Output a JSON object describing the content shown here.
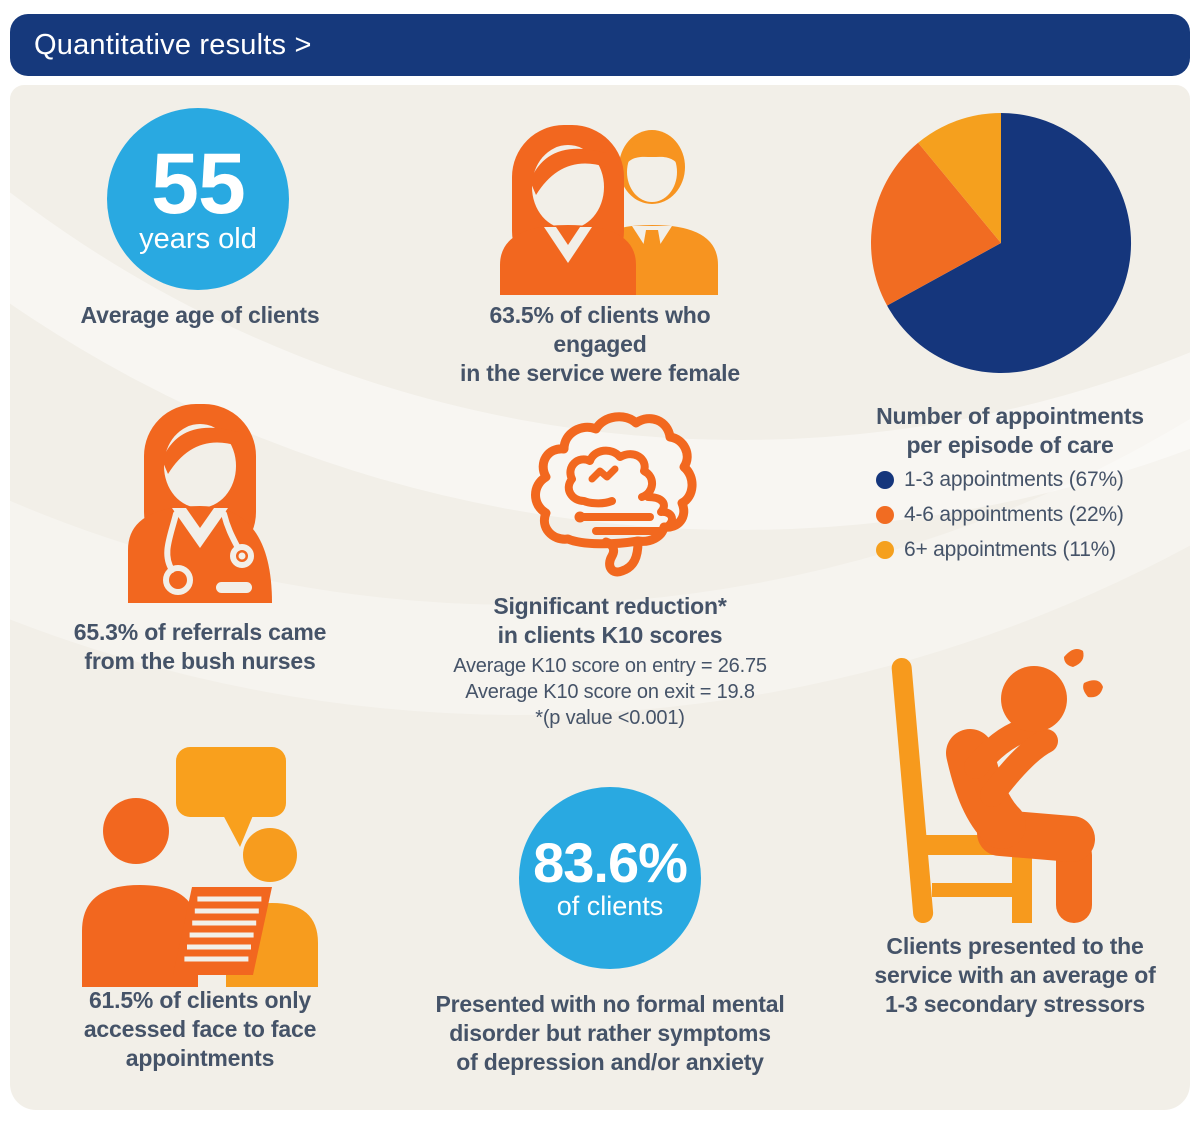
{
  "header": {
    "title": "Quantitative results >"
  },
  "palette": {
    "navy": "#16397c",
    "orange": "#f2671f",
    "amber": "#f79c1d",
    "sky_blue": "#29a9e1",
    "caption_text": "#455368",
    "panel_background": "#f2efe8"
  },
  "stats": {
    "age": {
      "value": "55",
      "unit": "years old",
      "caption": "Average age of clients"
    },
    "gender": {
      "caption": "63.5% of clients who engaged\nin the service were female"
    },
    "appointments": {
      "title": "Number of appointments\nper episode of care",
      "legend": [
        {
          "label": "1-3 appointments (67%)"
        },
        {
          "label": "4-6 appointments (22%)"
        },
        {
          "label": "6+ appointments (11%)"
        }
      ]
    },
    "referrals": {
      "caption": "65.3% of referrals came\nfrom the bush nurses"
    },
    "k10": {
      "caption": "Significant reduction*\nin clients K10 scores",
      "detail": "Average K10 score on entry = 26.75\nAverage K10 score on exit = 19.8\n*(p value <0.001)"
    },
    "face_to_face": {
      "caption": "61.5% of clients only\naccessed face to face\nappointments"
    },
    "no_disorder": {
      "value": "83.6%",
      "unit": "of clients",
      "caption": "Presented with no formal mental\ndisorder but rather symptoms\nof depression and/or anxiety"
    },
    "stressors": {
      "caption": "Clients presented to the\nservice with an average of\n1-3 secondary stressors"
    }
  },
  "chart_data": {
    "type": "pie",
    "title": "Number of appointments per episode of care",
    "labels": [
      "1-3 appointments",
      "4-6 appointments",
      "6+ appointments"
    ],
    "values": [
      67,
      22,
      11
    ],
    "colors": [
      "#15367c",
      "#f16c22",
      "#f5a01e"
    ],
    "start_angle_deg": 0,
    "direction": "clockwise",
    "legend_position": "below title, right column"
  }
}
